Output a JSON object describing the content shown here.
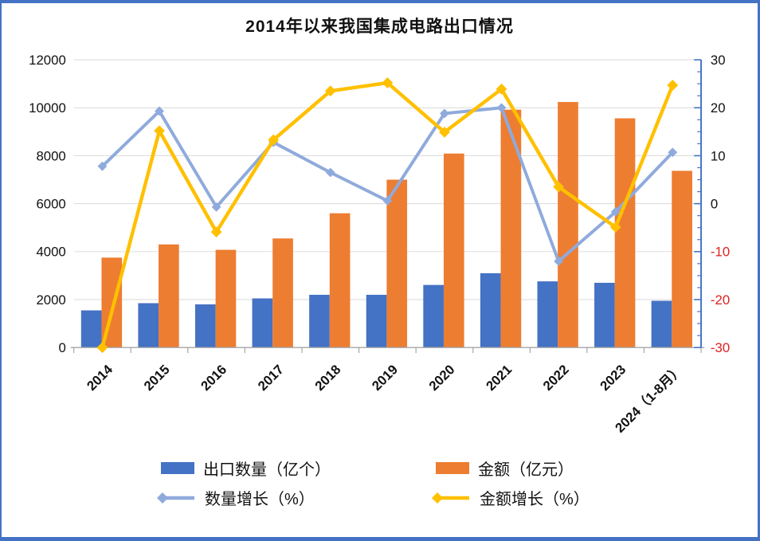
{
  "frame": {
    "border_color": "#4472C4",
    "background": "#ffffff"
  },
  "chart_data": {
    "type": "combo",
    "title": "2014年以来我国集成电路出口情况",
    "categories": [
      "2014",
      "2015",
      "2016",
      "2017",
      "2018",
      "2019",
      "2020",
      "2021",
      "2022",
      "2023",
      "2024（1-8月）"
    ],
    "series": [
      {
        "name": "出口数量（亿个）",
        "type": "bar",
        "axis": "left",
        "color": "#4472C4",
        "values": [
          1550,
          1850,
          1800,
          2050,
          2200,
          2200,
          2610,
          3100,
          2760,
          2700,
          1950
        ]
      },
      {
        "name": "金额（亿元）",
        "type": "bar",
        "axis": "left",
        "color": "#ED7D31",
        "values": [
          3750,
          4300,
          4075,
          4550,
          5600,
          7000,
          8090,
          9920,
          10240,
          9560,
          7370
        ]
      },
      {
        "name": "数量增长（%）",
        "type": "line",
        "axis": "right",
        "color": "#8FAADC",
        "marker": "diamond",
        "values": [
          7.8,
          19.3,
          -0.7,
          12.8,
          6.5,
          0.6,
          18.8,
          20.0,
          -12.0,
          -1.7,
          10.7
        ]
      },
      {
        "name": "金额增长（%）",
        "type": "line",
        "axis": "right",
        "color": "#FFC000",
        "marker": "diamond",
        "values": [
          -30,
          15.2,
          -5.9,
          13.3,
          23.5,
          25.2,
          14.9,
          23.9,
          3.5,
          -4.9,
          24.7
        ]
      }
    ],
    "left_axis": {
      "min": 0,
      "max": 12000,
      "step": 2000,
      "ticks": [
        0,
        2000,
        4000,
        6000,
        8000,
        10000,
        12000
      ],
      "label_color": "#111111"
    },
    "right_axis": {
      "min": -30,
      "max": 30,
      "step": 10,
      "minor_step": 2.5,
      "ticks": [
        -30,
        -20,
        -10,
        0,
        10,
        20,
        30
      ],
      "label_color": "#111111",
      "negative_label_color": "#E02020",
      "axis_color": "#4472C4"
    },
    "grid": {
      "horizontal": true,
      "color": "#D9D9D9",
      "baseline_color": "#A6A6A6"
    },
    "legend_position": "bottom",
    "x_labels_rotation_deg": -45
  }
}
